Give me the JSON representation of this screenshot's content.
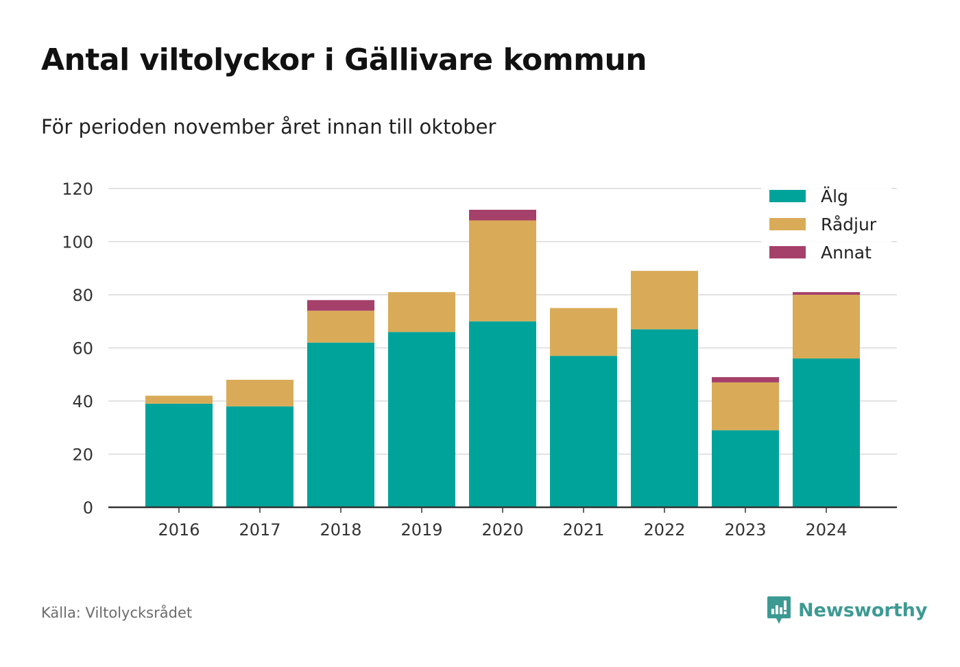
{
  "title": "Antal viltolyckor i Gällivare kommun",
  "subtitle": "För perioden november året innan till oktober",
  "source": "Källa: Viltolycksrådet",
  "brand": "Newsworthy",
  "chart_data": {
    "type": "bar",
    "stacked": true,
    "categories": [
      "2016",
      "2017",
      "2018",
      "2019",
      "2020",
      "2021",
      "2022",
      "2023",
      "2024"
    ],
    "series": [
      {
        "name": "Älg",
        "color": "#00a39a",
        "values": [
          39,
          38,
          62,
          66,
          70,
          57,
          67,
          29,
          56
        ]
      },
      {
        "name": "Rådjur",
        "color": "#d9ab58",
        "values": [
          3,
          10,
          12,
          15,
          38,
          18,
          22,
          18,
          24
        ]
      },
      {
        "name": "Annat",
        "color": "#a5406a",
        "values": [
          0,
          0,
          4,
          0,
          4,
          0,
          0,
          2,
          1
        ]
      }
    ],
    "ylim": [
      0,
      120
    ],
    "yticks": [
      0,
      20,
      40,
      60,
      80,
      100,
      120
    ],
    "grid": true,
    "legend": "top-right"
  }
}
